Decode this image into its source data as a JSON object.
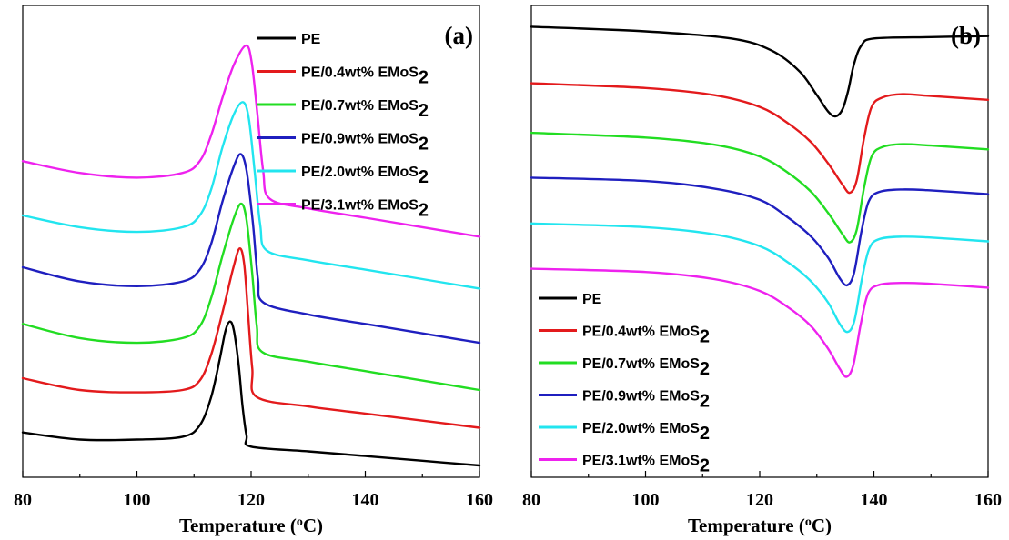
{
  "chart_data": [
    {
      "type": "line",
      "panel_label": "(a)",
      "xlabel": "Temperature (",
      "xlabel_sup": "o",
      "xlabel_end": "C)",
      "ylabel": "",
      "xlim": [
        80,
        160
      ],
      "ylim": [
        0,
        10
      ],
      "xticks": [
        80,
        100,
        120,
        140,
        160
      ],
      "legend_position": "top-right",
      "series": [
        {
          "name": "PE",
          "name_sub": "",
          "color": "#000000",
          "points": [
            [
              80,
              0.95
            ],
            [
              90,
              0.8
            ],
            [
              100,
              0.8
            ],
            [
              108,
              0.86
            ],
            [
              111,
              1.1
            ],
            [
              113,
              1.7
            ],
            [
              114.5,
              2.5
            ],
            [
              115.5,
              3.1
            ],
            [
              116.3,
              3.3
            ],
            [
              117,
              3.1
            ],
            [
              117.8,
              2.4
            ],
            [
              118.5,
              1.5
            ],
            [
              119.2,
              0.88
            ],
            [
              120,
              0.65
            ],
            [
              130,
              0.55
            ],
            [
              140,
              0.45
            ],
            [
              150,
              0.35
            ],
            [
              160,
              0.25
            ]
          ]
        },
        {
          "name": "PE/0.4wt% EMoS",
          "name_sub": "2",
          "color": "#e31a1c",
          "points": [
            [
              80,
              2.1
            ],
            [
              90,
              1.85
            ],
            [
              100,
              1.8
            ],
            [
              108,
              1.85
            ],
            [
              111,
              2.05
            ],
            [
              113,
              2.6
            ],
            [
              115,
              3.5
            ],
            [
              116.8,
              4.4
            ],
            [
              118,
              4.85
            ],
            [
              118.8,
              4.5
            ],
            [
              119.5,
              3.4
            ],
            [
              120.2,
              2.3
            ],
            [
              121,
              1.7
            ],
            [
              130,
              1.5
            ],
            [
              140,
              1.35
            ],
            [
              150,
              1.2
            ],
            [
              160,
              1.05
            ]
          ]
        },
        {
          "name": "PE/0.7wt% EMoS",
          "name_sub": "2",
          "color": "#22dd22",
          "points": [
            [
              80,
              3.25
            ],
            [
              90,
              2.95
            ],
            [
              100,
              2.85
            ],
            [
              108,
              2.95
            ],
            [
              111,
              3.2
            ],
            [
              113,
              3.8
            ],
            [
              115,
              4.7
            ],
            [
              117,
              5.5
            ],
            [
              118.3,
              5.8
            ],
            [
              119.2,
              5.45
            ],
            [
              120.2,
              4.3
            ],
            [
              121,
              3.2
            ],
            [
              122,
              2.65
            ],
            [
              130,
              2.45
            ],
            [
              140,
              2.25
            ],
            [
              150,
              2.05
            ],
            [
              160,
              1.85
            ]
          ]
        },
        {
          "name": "PE/0.9wt% EMoS",
          "name_sub": "2",
          "color": "#1f1fbf",
          "points": [
            [
              80,
              4.45
            ],
            [
              90,
              4.15
            ],
            [
              100,
              4.05
            ],
            [
              108,
              4.15
            ],
            [
              111,
              4.4
            ],
            [
              113,
              4.95
            ],
            [
              115,
              5.85
            ],
            [
              117,
              6.6
            ],
            [
              118.2,
              6.85
            ],
            [
              119.2,
              6.5
            ],
            [
              120.3,
              5.4
            ],
            [
              121.2,
              4.2
            ],
            [
              122.2,
              3.7
            ],
            [
              130,
              3.45
            ],
            [
              140,
              3.25
            ],
            [
              150,
              3.05
            ],
            [
              160,
              2.85
            ]
          ]
        },
        {
          "name": "PE/2.0wt% EMoS",
          "name_sub": "2",
          "color": "#22e5ef",
          "points": [
            [
              80,
              5.55
            ],
            [
              90,
              5.3
            ],
            [
              100,
              5.2
            ],
            [
              108,
              5.3
            ],
            [
              111,
              5.55
            ],
            [
              113,
              6.1
            ],
            [
              115,
              7.0
            ],
            [
              117,
              7.7
            ],
            [
              118.6,
              7.95
            ],
            [
              119.6,
              7.6
            ],
            [
              120.6,
              6.5
            ],
            [
              121.6,
              5.35
            ],
            [
              122.8,
              4.8
            ],
            [
              130,
              4.6
            ],
            [
              140,
              4.4
            ],
            [
              150,
              4.2
            ],
            [
              160,
              4.0
            ]
          ]
        },
        {
          "name": "PE/3.1wt% EMoS",
          "name_sub": "2",
          "color": "#ee22ee",
          "points": [
            [
              80,
              6.7
            ],
            [
              90,
              6.45
            ],
            [
              100,
              6.35
            ],
            [
              108,
              6.45
            ],
            [
              111,
              6.7
            ],
            [
              113,
              7.25
            ],
            [
              115,
              8.05
            ],
            [
              117,
              8.75
            ],
            [
              119.1,
              9.15
            ],
            [
              120.1,
              8.8
            ],
            [
              121.1,
              7.7
            ],
            [
              122.1,
              6.5
            ],
            [
              123.3,
              5.9
            ],
            [
              130,
              5.7
            ],
            [
              140,
              5.5
            ],
            [
              150,
              5.3
            ],
            [
              160,
              5.1
            ]
          ]
        }
      ]
    },
    {
      "type": "line",
      "panel_label": "(b)",
      "xlabel": "Temperature (",
      "xlabel_sup": "o",
      "xlabel_end": "C)",
      "ylabel": "",
      "xlim": [
        80,
        160
      ],
      "ylim": [
        0,
        10
      ],
      "xticks": [
        80,
        100,
        120,
        140,
        160
      ],
      "legend_position": "bottom-left",
      "series": [
        {
          "name": "PE",
          "name_sub": "",
          "color": "#000000",
          "points": [
            [
              80,
              9.55
            ],
            [
              100,
              9.45
            ],
            [
              115,
              9.3
            ],
            [
              122,
              9.05
            ],
            [
              127,
              8.6
            ],
            [
              130,
              8.1
            ],
            [
              132,
              7.75
            ],
            [
              133.3,
              7.65
            ],
            [
              134.5,
              7.8
            ],
            [
              135.5,
              8.2
            ],
            [
              136.5,
              8.75
            ],
            [
              137.8,
              9.15
            ],
            [
              140,
              9.3
            ],
            [
              150,
              9.33
            ],
            [
              160,
              9.35
            ]
          ]
        },
        {
          "name": "PE/0.4wt% EMoS",
          "name_sub": "2",
          "color": "#e31a1c",
          "points": [
            [
              80,
              8.35
            ],
            [
              100,
              8.25
            ],
            [
              112,
              8.1
            ],
            [
              120,
              7.85
            ],
            [
              125,
              7.5
            ],
            [
              129,
              7.1
            ],
            [
              132,
              6.65
            ],
            [
              134.5,
              6.2
            ],
            [
              135.8,
              6.03
            ],
            [
              137,
              6.3
            ],
            [
              138.3,
              7.2
            ],
            [
              139.6,
              7.85
            ],
            [
              141.5,
              8.05
            ],
            [
              145,
              8.12
            ],
            [
              150,
              8.08
            ],
            [
              160,
              8.0
            ]
          ]
        },
        {
          "name": "PE/0.7wt% EMoS",
          "name_sub": "2",
          "color": "#22dd22",
          "points": [
            [
              80,
              7.3
            ],
            [
              100,
              7.2
            ],
            [
              112,
              7.05
            ],
            [
              120,
              6.8
            ],
            [
              125,
              6.45
            ],
            [
              129,
              6.05
            ],
            [
              132,
              5.6
            ],
            [
              134.5,
              5.15
            ],
            [
              135.8,
              4.98
            ],
            [
              137,
              5.25
            ],
            [
              138.3,
              6.15
            ],
            [
              139.6,
              6.8
            ],
            [
              141.5,
              7.0
            ],
            [
              145,
              7.06
            ],
            [
              150,
              7.03
            ],
            [
              160,
              6.95
            ]
          ]
        },
        {
          "name": "PE/0.9wt% EMoS",
          "name_sub": "2",
          "color": "#1f1fbf",
          "points": [
            [
              80,
              6.35
            ],
            [
              100,
              6.28
            ],
            [
              112,
              6.12
            ],
            [
              120,
              5.88
            ],
            [
              125,
              5.5
            ],
            [
              129,
              5.1
            ],
            [
              132,
              4.65
            ],
            [
              134,
              4.22
            ],
            [
              135.3,
              4.07
            ],
            [
              136.5,
              4.32
            ],
            [
              137.8,
              5.2
            ],
            [
              139.1,
              5.85
            ],
            [
              141,
              6.05
            ],
            [
              145,
              6.1
            ],
            [
              150,
              6.08
            ],
            [
              160,
              6.0
            ]
          ]
        },
        {
          "name": "PE/2.0wt% EMoS",
          "name_sub": "2",
          "color": "#22e5ef",
          "points": [
            [
              80,
              5.38
            ],
            [
              100,
              5.3
            ],
            [
              112,
              5.15
            ],
            [
              120,
              4.9
            ],
            [
              125,
              4.55
            ],
            [
              129,
              4.15
            ],
            [
              132,
              3.7
            ],
            [
              134,
              3.25
            ],
            [
              135.4,
              3.08
            ],
            [
              136.6,
              3.33
            ],
            [
              137.9,
              4.2
            ],
            [
              139.2,
              4.85
            ],
            [
              141,
              5.05
            ],
            [
              145,
              5.1
            ],
            [
              150,
              5.08
            ],
            [
              160,
              5.0
            ]
          ]
        },
        {
          "name": "PE/3.1wt% EMoS",
          "name_sub": "2",
          "color": "#ee22ee",
          "points": [
            [
              80,
              4.42
            ],
            [
              100,
              4.35
            ],
            [
              112,
              4.2
            ],
            [
              120,
              3.95
            ],
            [
              125,
              3.6
            ],
            [
              129,
              3.2
            ],
            [
              132,
              2.72
            ],
            [
              134,
              2.3
            ],
            [
              135.2,
              2.13
            ],
            [
              136.4,
              2.38
            ],
            [
              137.7,
              3.25
            ],
            [
              139,
              3.9
            ],
            [
              141,
              4.08
            ],
            [
              145,
              4.12
            ],
            [
              150,
              4.1
            ],
            [
              160,
              4.02
            ]
          ]
        }
      ]
    }
  ]
}
